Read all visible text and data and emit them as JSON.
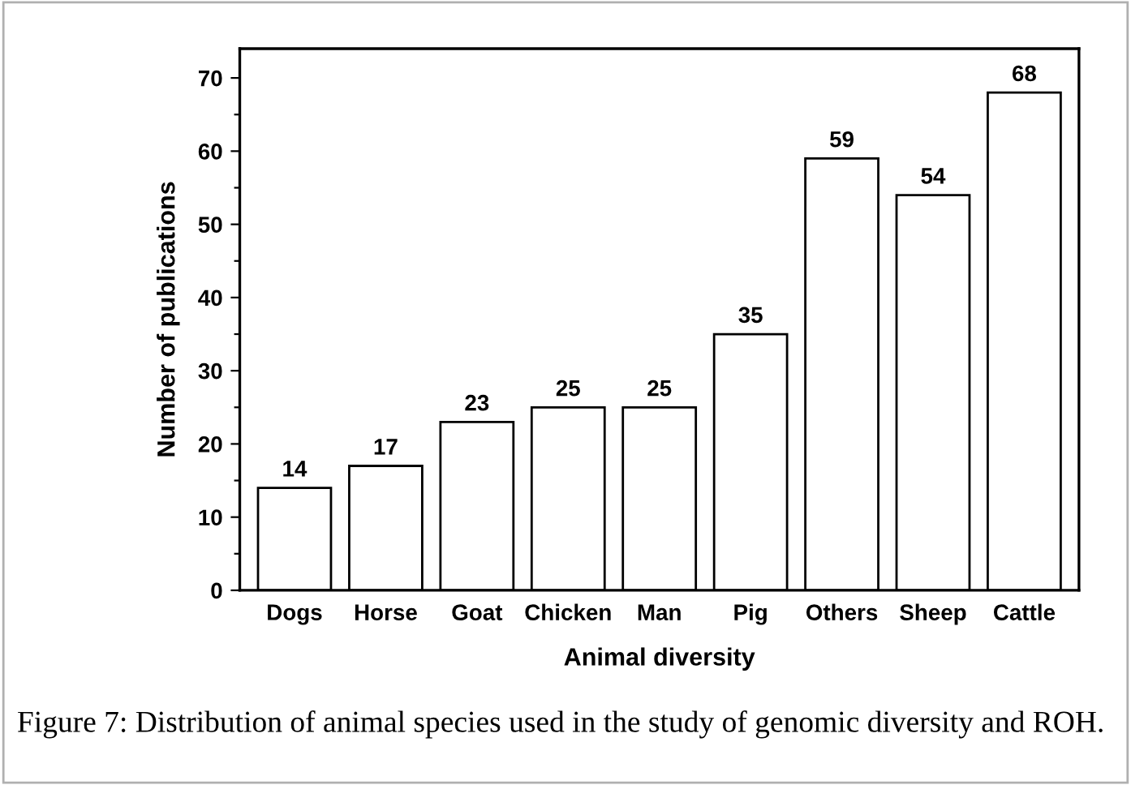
{
  "chart_data": {
    "type": "bar",
    "xlabel": "Animal diversity",
    "ylabel": "Number of publications",
    "categories": [
      "Dogs",
      "Horse",
      "Goat",
      "Chicken",
      "Man",
      "Pig",
      "Others",
      "Sheep",
      "Cattle"
    ],
    "values": [
      14,
      17,
      23,
      25,
      25,
      35,
      59,
      54,
      68
    ],
    "color": "#ffffff",
    "data_labels": true,
    "ylim": [
      0,
      74
    ],
    "yticks": [
      0,
      {
        "value": 5,
        "label": null
      },
      10,
      {
        "value": 15,
        "label": null
      },
      20,
      {
        "value": 25,
        "label": null
      },
      30,
      {
        "value": 35,
        "label": null
      },
      40,
      {
        "value": 45,
        "label": null
      },
      50,
      {
        "value": 55,
        "label": null
      },
      60,
      {
        "value": 65,
        "label": null
      },
      70
    ],
    "grid": false,
    "legend": false,
    "annotations": [
      "Figure 7: Distribution of animal species used in the study of genomic diversity and ROH."
    ]
  }
}
